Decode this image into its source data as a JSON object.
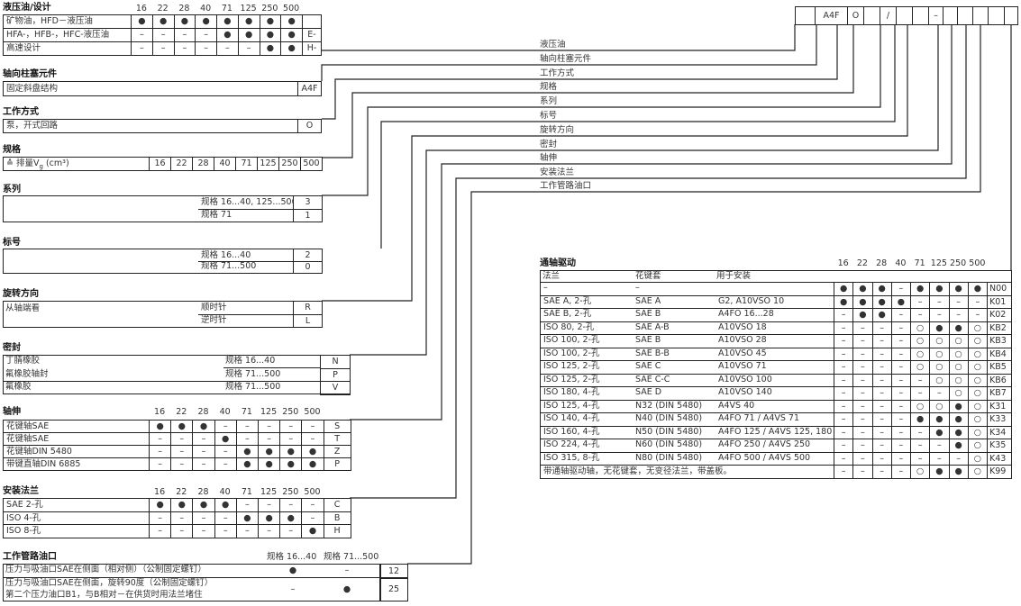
{
  "order_code": {
    "boxes": [
      "",
      "A4F",
      "O",
      "",
      "/",
      "",
      "",
      "–",
      "",
      "",
      "",
      "",
      ""
    ]
  },
  "legend": [
    "液压油",
    "轴向柱塞元件",
    "工作方式",
    "规格",
    "系列",
    "标号",
    "旋转方向",
    "密封",
    "轴伸",
    "安装法兰",
    "工作管路油口"
  ],
  "sizes": [
    "16",
    "22",
    "28",
    "40",
    "71",
    "125",
    "250",
    "500"
  ],
  "hydraulic": {
    "title": "液压油/设计",
    "rows": [
      {
        "label": "矿物油，HFD－液压油",
        "cells": [
          "●",
          "●",
          "●",
          "●",
          "●",
          "●",
          "●",
          "●"
        ],
        "code": ""
      },
      {
        "label": "HFA-，HFB-，HFC-液压油",
        "cells": [
          "–",
          "–",
          "–",
          "–",
          "●",
          "●",
          "●",
          "●"
        ],
        "code": "E-"
      },
      {
        "label": "高速设计",
        "cells": [
          "–",
          "–",
          "–",
          "–",
          "–",
          "–",
          "●",
          "●"
        ],
        "code": "H-"
      }
    ]
  },
  "axial": {
    "title": "轴向柱塞元件",
    "label": "固定斜盘结构",
    "code": "A4F"
  },
  "mode": {
    "title": "工作方式",
    "label": "泵，开式回路",
    "code": "O"
  },
  "size": {
    "title": "规格",
    "label_prefix": "≙ 排量V",
    "label_sub": "g",
    "label_unit": " (cm³)"
  },
  "series": {
    "title": "系列",
    "rows": [
      {
        "label": "规格 16...40, 125...500",
        "code": "3"
      },
      {
        "label": "规格 71",
        "code": "1"
      }
    ]
  },
  "index": {
    "title": "标号",
    "rows": [
      {
        "label": "规格  16...40",
        "code": "2"
      },
      {
        "label": "规格  71...500",
        "code": "0"
      }
    ]
  },
  "rotation": {
    "title": "旋转方向",
    "note": "从轴端看",
    "rows": [
      {
        "label": "顺时针",
        "code": "R"
      },
      {
        "label": "逆时针",
        "code": "L"
      }
    ]
  },
  "seal": {
    "title": "密封",
    "rows": [
      {
        "material": "丁腈橡胶",
        "label": "规格  16...40",
        "code": "N"
      },
      {
        "material": "氟橡胶轴封",
        "label": "规格  71...500",
        "code": "P"
      },
      {
        "material": "氟橡胶",
        "label": "规格  71...500",
        "code": "V"
      }
    ]
  },
  "shaft": {
    "title": "轴伸",
    "rows": [
      {
        "label": "花键轴SAE",
        "cells": [
          "●",
          "●",
          "●",
          "–",
          "–",
          "–",
          "–",
          "–"
        ],
        "code": "S"
      },
      {
        "label": "花键轴SAE",
        "cells": [
          "–",
          "–",
          "–",
          "●",
          "–",
          "–",
          "–",
          "–"
        ],
        "code": "T"
      },
      {
        "label": "花键轴DIN 5480",
        "cells": [
          "–",
          "–",
          "–",
          "–",
          "●",
          "●",
          "●",
          "●"
        ],
        "code": "Z"
      },
      {
        "label": "带键直轴DIN 6885",
        "cells": [
          "–",
          "–",
          "–",
          "–",
          "●",
          "●",
          "●",
          "●"
        ],
        "code": "P"
      }
    ]
  },
  "flange": {
    "title": "安装法兰",
    "rows": [
      {
        "label": "SAE 2-孔",
        "cells": [
          "●",
          "●",
          "●",
          "●",
          "–",
          "–",
          "–",
          "–"
        ],
        "code": "C"
      },
      {
        "label": "ISO 4-孔",
        "cells": [
          "–",
          "–",
          "–",
          "–",
          "●",
          "●",
          "●",
          "–"
        ],
        "code": "B"
      },
      {
        "label": "ISO 8-孔",
        "cells": [
          "–",
          "–",
          "–",
          "–",
          "–",
          "–",
          "–",
          "●"
        ],
        "code": "H"
      }
    ]
  },
  "ports": {
    "title": "工作管路油口",
    "col1": "规格 16...40",
    "col2": "规格 71...500",
    "rows": [
      {
        "lines": [
          "压力与吸油口SAE在侧面（相对侧）（公制固定螺钉）"
        ],
        "a": "●",
        "b": "–",
        "code": "12"
      },
      {
        "lines": [
          "压力与吸油口SAE在侧面，旋转90度（公制固定螺钉）",
          "第二个压力油口B1，与B相对－在供货时用法兰堵住"
        ],
        "a": "–",
        "b": "●",
        "code": "25"
      }
    ]
  },
  "through": {
    "title": "通轴驱动",
    "headers": [
      "法兰",
      "花键套",
      "用于安装"
    ],
    "rows": [
      {
        "flange": "–",
        "hub": "–",
        "mount": "",
        "cells": [
          "●",
          "●",
          "●",
          "–",
          "●",
          "●",
          "●",
          "●"
        ],
        "code": "N00"
      },
      {
        "flange": "SAE A, 2-孔",
        "hub": "SAE A",
        "mount": "G2, A10VSO 10",
        "cells": [
          "●",
          "●",
          "●",
          "●",
          "–",
          "–",
          "–",
          "–"
        ],
        "code": "K01"
      },
      {
        "flange": "SAE B, 2-孔",
        "hub": "SAE B",
        "mount": "A4FO 16...28",
        "cells": [
          "–",
          "●",
          "●",
          "–",
          "–",
          "–",
          "–",
          "–"
        ],
        "code": "K02"
      },
      {
        "flange": "ISO 80, 2-孔",
        "hub": "SAE A-B",
        "mount": "A10VSO 18",
        "cells": [
          "–",
          "–",
          "–",
          "–",
          "○",
          "●",
          "●",
          "○"
        ],
        "code": "KB2"
      },
      {
        "flange": "ISO 100, 2-孔",
        "hub": "SAE B",
        "mount": "A10VSO 28",
        "cells": [
          "–",
          "–",
          "–",
          "–",
          "○",
          "○",
          "○",
          "○"
        ],
        "code": "KB3"
      },
      {
        "flange": "ISO 100, 2-孔",
        "hub": "SAE B-B",
        "mount": "A10VSO 45",
        "cells": [
          "–",
          "–",
          "–",
          "–",
          "○",
          "○",
          "○",
          "○"
        ],
        "code": "KB4"
      },
      {
        "flange": "ISO 125, 2-孔",
        "hub": "SAE C",
        "mount": "A10VSO 71",
        "cells": [
          "–",
          "–",
          "–",
          "–",
          "○",
          "○",
          "○",
          "○"
        ],
        "code": "KB5"
      },
      {
        "flange": "ISO 125, 2-孔",
        "hub": "SAE C-C",
        "mount": "A10VSO 100",
        "cells": [
          "–",
          "–",
          "–",
          "–",
          "–",
          "○",
          "○",
          "○"
        ],
        "code": "KB6"
      },
      {
        "flange": "ISO 180, 4-孔",
        "hub": "SAE D",
        "mount": "A10VSO 140",
        "cells": [
          "–",
          "–",
          "–",
          "–",
          "–",
          "–",
          "○",
          "○"
        ],
        "code": "KB7"
      },
      {
        "flange": "ISO 125, 4-孔",
        "hub": "N32 (DIN 5480)",
        "mount": "A4VS 40",
        "cells": [
          "–",
          "–",
          "–",
          "–",
          "○",
          "○",
          "●",
          "○"
        ],
        "code": "K31"
      },
      {
        "flange": "ISO 140, 4-孔",
        "hub": "N40 (DIN 5480)",
        "mount": "A4FO 71 / A4VS 71",
        "cells": [
          "–",
          "–",
          "–",
          "–",
          "●",
          "●",
          "●",
          "○"
        ],
        "code": "K33"
      },
      {
        "flange": "ISO 160, 4-孔",
        "hub": "N50 (DIN 5480)",
        "mount": "A4FO 125 / A4VS 125, 180",
        "cells": [
          "–",
          "–",
          "–",
          "–",
          "–",
          "●",
          "●",
          "○"
        ],
        "code": "K34"
      },
      {
        "flange": "ISO 224, 4-孔",
        "hub": "N60 (DIN 5480)",
        "mount": "A4FO 250 / A4VS 250",
        "cells": [
          "–",
          "–",
          "–",
          "–",
          "–",
          "–",
          "●",
          "○"
        ],
        "code": "K35"
      },
      {
        "flange": "ISO 315, 8-孔",
        "hub": "N80 (DIN 5480)",
        "mount": "A4FO 500 / A4VS 500",
        "cells": [
          "–",
          "–",
          "–",
          "–",
          "–",
          "–",
          "–",
          "○"
        ],
        "code": "K43"
      }
    ],
    "last_row": {
      "label": "带通轴驱动轴，无花键套，无变径法兰，带盖板。",
      "cells": [
        "–",
        "–",
        "–",
        "–",
        "○",
        "●",
        "●",
        "○"
      ],
      "code": "K99"
    }
  }
}
